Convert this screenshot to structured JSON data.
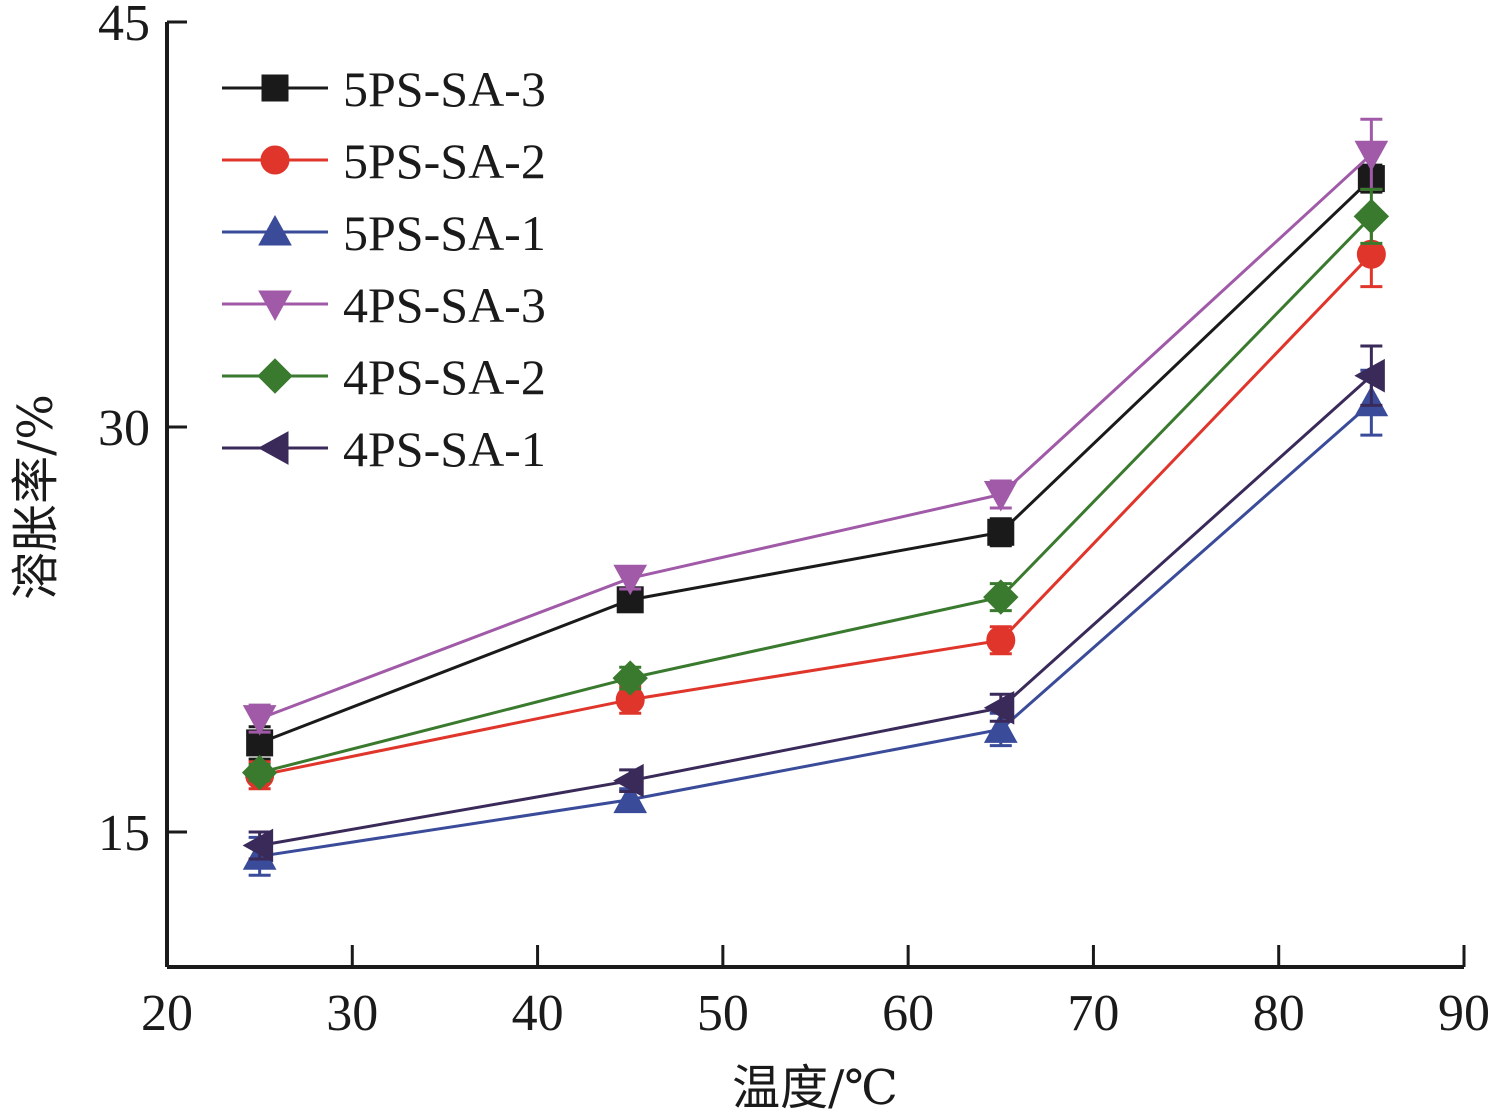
{
  "chart_data": {
    "type": "line",
    "xlabel": "温度/℃",
    "ylabel": "溶胀率/%",
    "xlim": [
      20,
      90
    ],
    "ylim": [
      10,
      45
    ],
    "x_ticks": [
      "20",
      "30",
      "40",
      "50",
      "60",
      "70",
      "80",
      "90"
    ],
    "y_ticks": [
      "15",
      "30",
      "45"
    ],
    "grid": false,
    "legend_position": "top-left",
    "x": [
      25,
      45,
      65,
      85
    ],
    "series": [
      {
        "name": "5PS-SA-3",
        "color": "#1a1a1a",
        "marker": "square",
        "values": [
          18.3,
          23.6,
          26.1,
          39.2
        ],
        "errors": [
          0.6,
          0.4,
          0.5,
          0.5
        ]
      },
      {
        "name": "5PS-SA-2",
        "color": "#e0352b",
        "marker": "circle",
        "values": [
          17.1,
          19.9,
          22.1,
          36.4
        ],
        "errors": [
          0.5,
          0.5,
          0.5,
          1.2
        ]
      },
      {
        "name": "5PS-SA-1",
        "color": "#3a4b9a",
        "marker": "triangle-up",
        "values": [
          14.1,
          16.2,
          18.8,
          30.9
        ],
        "errors": [
          0.7,
          0.4,
          0.6,
          1.2
        ]
      },
      {
        "name": "4PS-SA-3",
        "color": "#a05aa8",
        "marker": "triangle-down",
        "values": [
          19.2,
          24.4,
          27.5,
          40.1
        ],
        "errors": [
          0.5,
          0.4,
          0.5,
          1.3
        ]
      },
      {
        "name": "4PS-SA-2",
        "color": "#3a7a2e",
        "marker": "diamond",
        "values": [
          17.2,
          20.7,
          23.7,
          37.8
        ],
        "errors": [
          0.3,
          0.4,
          0.5,
          1.0
        ]
      },
      {
        "name": "4PS-SA-1",
        "color": "#3a2a5a",
        "marker": "triangle-left",
        "values": [
          14.5,
          16.9,
          19.6,
          31.9
        ],
        "errors": [
          0.5,
          0.4,
          0.5,
          1.1
        ]
      }
    ]
  }
}
